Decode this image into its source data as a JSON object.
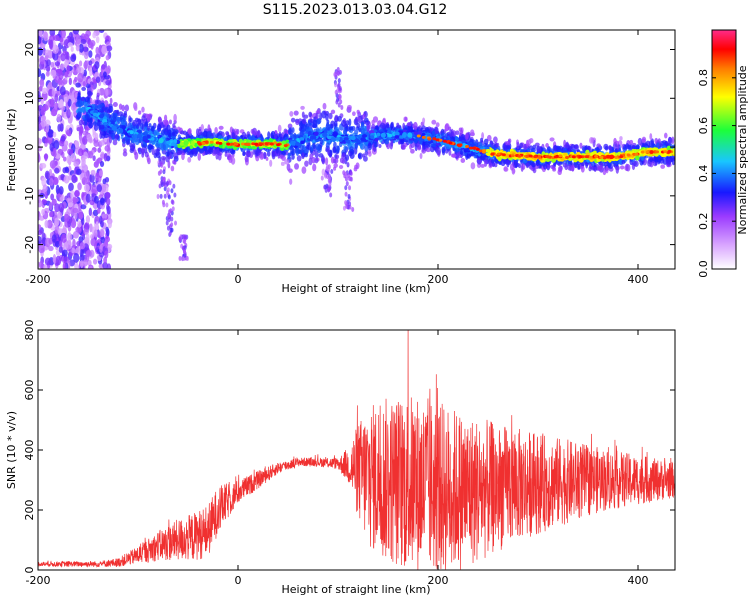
{
  "figure_title": "S115.2023.013.03.04.G12",
  "chart_data": [
    {
      "type": "heatmap",
      "xlabel": "Height of straight line (km)",
      "ylabel": "Frequency (Hz)",
      "xlim": [
        -200,
        437
      ],
      "ylim": [
        -25,
        24
      ],
      "xticks": [
        "-200",
        "0",
        "200",
        "400"
      ],
      "yticks": [
        "20",
        "10",
        "0",
        "-10",
        "-20"
      ],
      "grid": false,
      "colorbar": {
        "label": "Normalized spectral amplitude",
        "range": [
          0,
          1
        ],
        "ticks": [
          "0.0",
          "0.2",
          "0.4",
          "0.6",
          "0.8"
        ],
        "colors": [
          "#ffffff",
          "#9b3bff",
          "#1818ff",
          "#19c6ff",
          "#1cff3a",
          "#ffff00",
          "#ff7a00",
          "#ff0000",
          "#ff2b8a"
        ]
      },
      "ridge": {
        "x": [
          -150,
          -130,
          -110,
          -90,
          -70,
          -50,
          -30,
          0,
          30,
          50,
          70,
          90,
          110,
          130,
          150,
          170,
          200,
          230,
          260,
          300,
          340,
          380,
          410,
          437
        ],
        "y": [
          8,
          5,
          3,
          2,
          1,
          0.5,
          1,
          0.5,
          0.7,
          0.4,
          2,
          2.5,
          1.5,
          2,
          2.5,
          2.5,
          1.5,
          0,
          -1.5,
          -2,
          -2,
          -2,
          -1,
          -1
        ]
      }
    },
    {
      "type": "line",
      "xlabel": "Height of straight line (km)",
      "ylabel": "SNR (10 * v/v)",
      "xlim": [
        -200,
        437
      ],
      "ylim": [
        0,
        800
      ],
      "xticks": [
        "-200",
        "0",
        "200",
        "400"
      ],
      "yticks": [
        "800",
        "600",
        "400",
        "200",
        "0"
      ],
      "color": "#f03030",
      "envelope": {
        "x": [
          -200,
          -140,
          -120,
          -100,
          -80,
          -60,
          -45,
          -30,
          -20,
          -10,
          0,
          20,
          40,
          60,
          80,
          100,
          110,
          120,
          130,
          150,
          170,
          190,
          210,
          230,
          250,
          270,
          300,
          330,
          360,
          390,
          420,
          437
        ],
        "center": [
          20,
          20,
          25,
          50,
          80,
          100,
          110,
          130,
          200,
          230,
          260,
          300,
          340,
          360,
          360,
          355,
          350,
          330,
          310,
          300,
          290,
          280,
          270,
          265,
          270,
          280,
          290,
          295,
          300,
          300,
          300,
          300
        ],
        "spread": [
          8,
          10,
          15,
          30,
          50,
          70,
          80,
          90,
          80,
          60,
          40,
          30,
          20,
          15,
          15,
          20,
          60,
          160,
          240,
          280,
          300,
          300,
          280,
          260,
          230,
          200,
          170,
          140,
          110,
          90,
          70,
          60
        ]
      }
    }
  ]
}
